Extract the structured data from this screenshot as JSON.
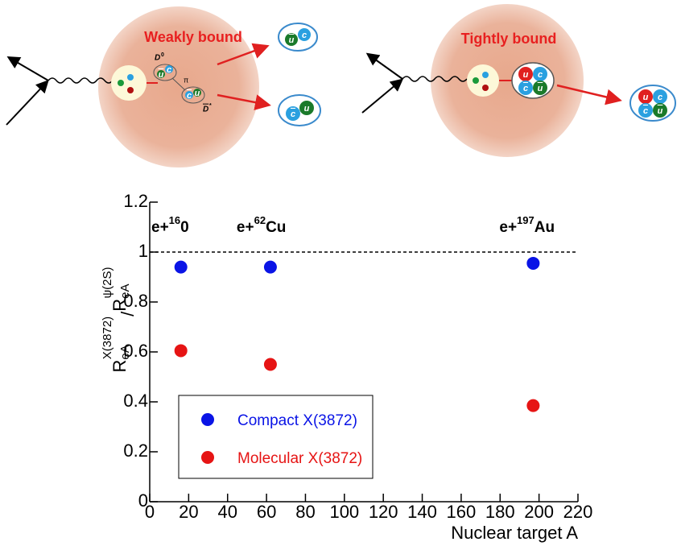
{
  "diagram": {
    "left": {
      "title": "Weakly bound",
      "meson1": {
        "base": "D",
        "sup": "0"
      },
      "pion": "π",
      "meson2": {
        "base": "D",
        "sup": "*"
      }
    },
    "right": {
      "title": "Tightly bound"
    },
    "quarks": [
      "u",
      "c"
    ]
  },
  "chart_data": {
    "type": "scatter",
    "x_label": "Nuclear target A",
    "y_label": {
      "base": "R",
      "sub": "eA",
      "sup": "X(3872)",
      "sep": "/",
      "base2": "R",
      "sub2": "eA",
      "sup2": "ψ(2S)"
    },
    "x": [
      16,
      62,
      197
    ],
    "series": [
      {
        "name": "Compact X(3872)",
        "color": "#0a14e6",
        "values": [
          0.94,
          0.94,
          0.955
        ]
      },
      {
        "name": "Molecular X(3872)",
        "color": "#e61414",
        "values": [
          0.605,
          0.55,
          0.385
        ]
      }
    ],
    "annotations": [
      {
        "text": "e+",
        "sup": "16",
        "suffix": "0"
      },
      {
        "text": "e+",
        "sup": "62",
        "suffix": "Cu"
      },
      {
        "text": "e+",
        "sup": "197",
        "suffix": "Au"
      }
    ],
    "reference_line": 1,
    "xlim": [
      0,
      220
    ],
    "xticks": [
      0,
      20,
      40,
      60,
      80,
      100,
      120,
      140,
      160,
      180,
      200,
      220
    ],
    "ylim": [
      0,
      1.2
    ],
    "yticks": [
      0,
      0.2,
      0.4,
      0.6,
      0.8,
      1,
      1.2
    ],
    "legend": "lower-left"
  }
}
